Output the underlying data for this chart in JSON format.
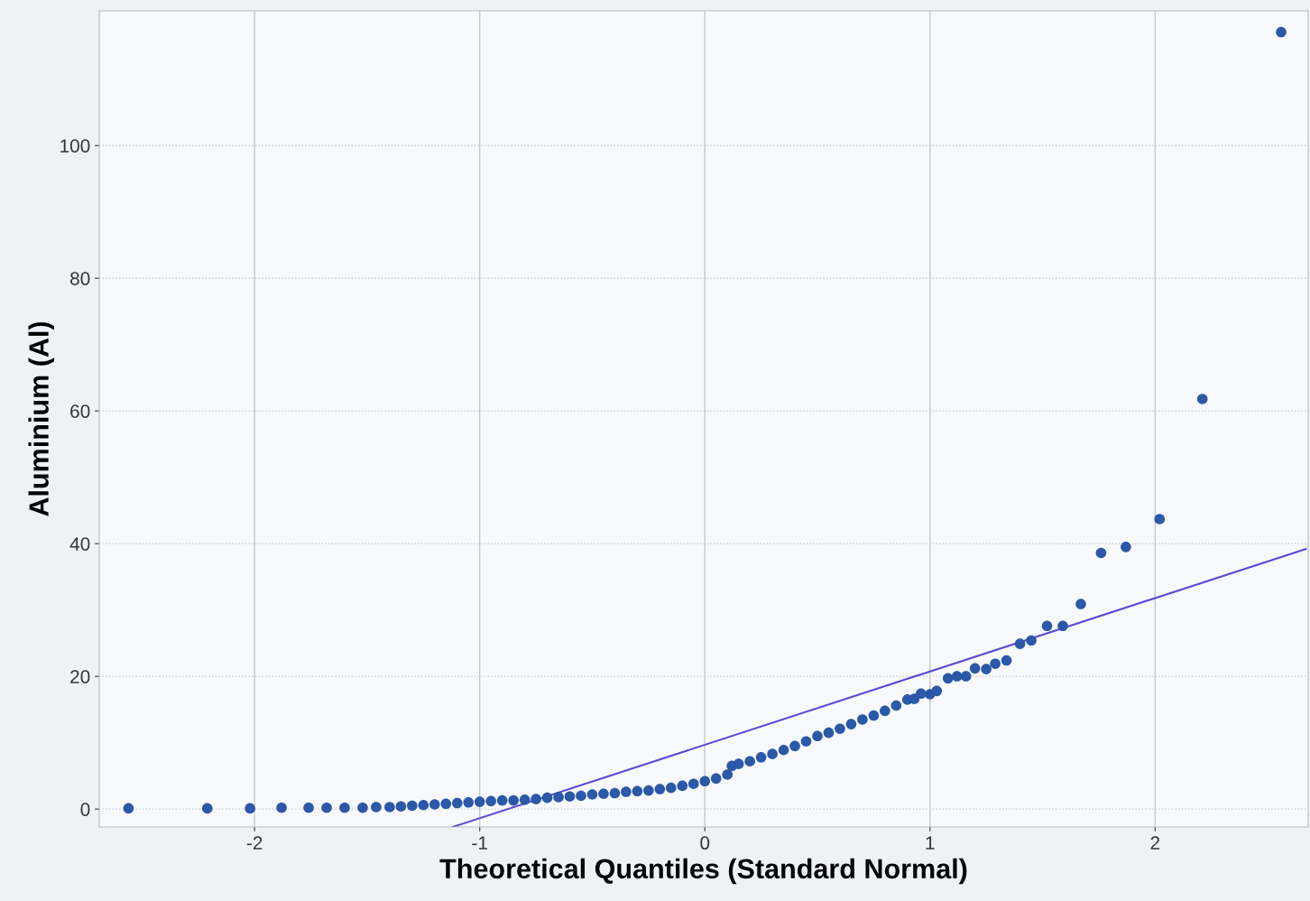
{
  "chart_data": {
    "type": "scatter",
    "xlabel": "Theoretical Quantiles (Standard Normal)",
    "ylabel": "Aluminium (Al)",
    "xlim": [
      -2.69,
      2.68
    ],
    "ylim": [
      -2.7,
      120.3
    ],
    "xticks": [
      -2,
      -1,
      0,
      1,
      2
    ],
    "yticks": [
      0,
      20,
      40,
      60,
      80,
      100
    ],
    "grid": true,
    "legend": false,
    "series": [
      {
        "marker": "circle",
        "color": "#2b58a8",
        "x": [
          -2.56,
          -2.21,
          -2.02,
          -1.88,
          -1.76,
          -1.68,
          -1.6,
          -1.52,
          -1.46,
          -1.4,
          -1.35,
          -1.3,
          -1.25,
          -1.2,
          -1.15,
          -1.1,
          -1.05,
          -1.0,
          -0.95,
          -0.9,
          -0.85,
          -0.8,
          -0.75,
          -0.7,
          -0.65,
          -0.6,
          -0.55,
          -0.5,
          -0.45,
          -0.4,
          -0.35,
          -0.3,
          -0.25,
          -0.2,
          -0.15,
          -0.1,
          -0.05,
          0.0,
          0.05,
          0.1,
          0.12,
          0.15,
          0.2,
          0.25,
          0.3,
          0.35,
          0.4,
          0.45,
          0.5,
          0.55,
          0.6,
          0.65,
          0.7,
          0.75,
          0.8,
          0.85,
          0.9,
          0.93,
          0.96,
          1.0,
          1.03,
          1.08,
          1.12,
          1.16,
          1.2,
          1.25,
          1.29,
          1.34,
          1.4,
          1.45,
          1.52,
          1.59,
          1.67,
          1.76,
          1.87,
          2.02,
          2.21,
          2.56
        ],
        "values": [
          0.1,
          0.1,
          0.1,
          0.2,
          0.2,
          0.2,
          0.2,
          0.2,
          0.3,
          0.3,
          0.4,
          0.5,
          0.6,
          0.7,
          0.8,
          0.9,
          1.0,
          1.1,
          1.2,
          1.3,
          1.3,
          1.4,
          1.5,
          1.7,
          1.8,
          1.9,
          2.0,
          2.2,
          2.3,
          2.4,
          2.6,
          2.7,
          2.8,
          3.0,
          3.2,
          3.5,
          3.8,
          4.2,
          4.6,
          5.2,
          6.5,
          6.8,
          7.2,
          7.8,
          8.3,
          8.9,
          9.5,
          10.2,
          11.0,
          11.5,
          12.1,
          12.8,
          13.5,
          14.1,
          14.8,
          15.6,
          16.5,
          16.6,
          17.4,
          17.3,
          17.8,
          19.7,
          20.0,
          20.0,
          21.2,
          21.1,
          21.9,
          22.4,
          24.9,
          25.4,
          27.6,
          27.6,
          30.9,
          38.6,
          39.5,
          43.7,
          61.8,
          117.1
        ]
      },
      {
        "type": "line",
        "color": "#5b46d6",
        "x": [
          -1.12,
          2.67
        ],
        "values": [
          -2.7,
          39.2
        ]
      }
    ]
  }
}
